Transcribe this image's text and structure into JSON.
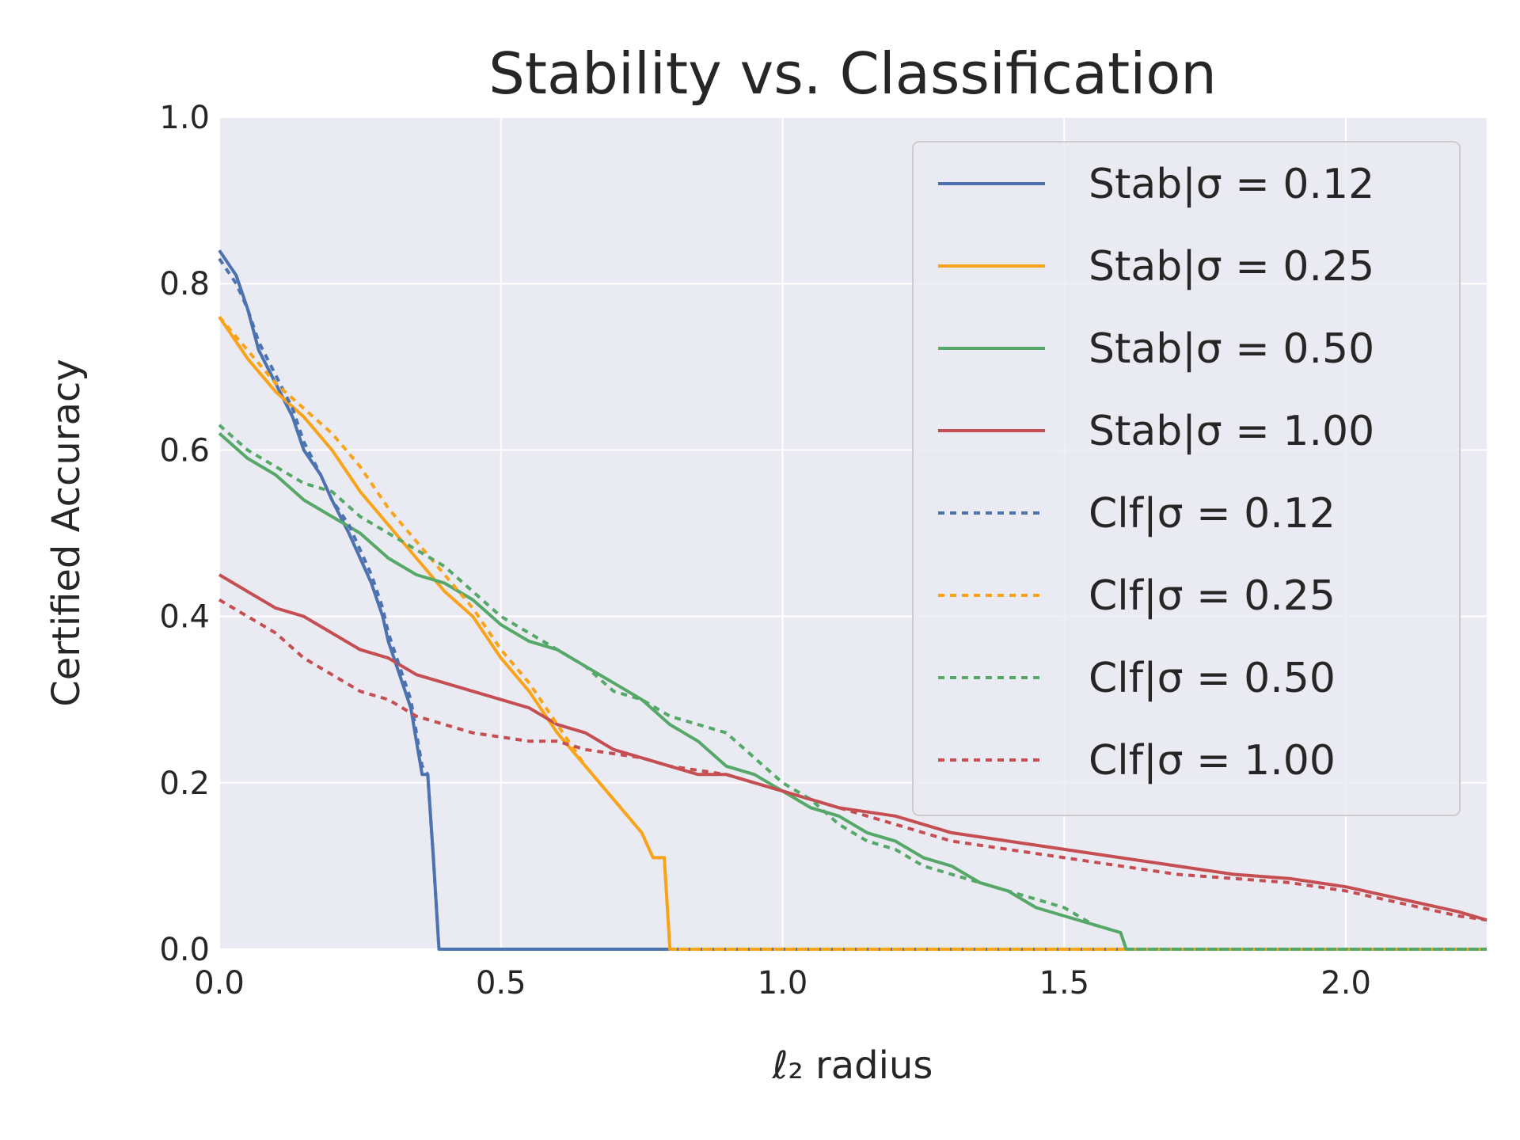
{
  "chart_data": {
    "type": "line",
    "title": "Stability vs. Classification",
    "xlabel": "ℓ₂ radius",
    "ylabel": "Certified Accuracy",
    "xlim": [
      0,
      2.25
    ],
    "ylim": [
      0,
      1.0
    ],
    "x_ticks": [
      "0.0",
      "0.5",
      "1.0",
      "1.5",
      "2.0"
    ],
    "y_ticks": [
      "0.0",
      "0.2",
      "0.4",
      "0.6",
      "0.8",
      "1.0"
    ],
    "grid": true,
    "legend_position": "top-right",
    "series": [
      {
        "name": "Stab|σ = 0.12",
        "color": "#4c72b0",
        "style": "solid",
        "x": [
          0,
          0.03,
          0.05,
          0.07,
          0.1,
          0.13,
          0.15,
          0.18,
          0.2,
          0.23,
          0.25,
          0.27,
          0.29,
          0.3,
          0.32,
          0.34,
          0.35,
          0.36,
          0.37,
          0.38,
          0.39,
          2.25
        ],
        "y": [
          0.84,
          0.81,
          0.77,
          0.72,
          0.68,
          0.64,
          0.6,
          0.57,
          0.54,
          0.5,
          0.47,
          0.44,
          0.4,
          0.37,
          0.33,
          0.29,
          0.25,
          0.21,
          0.21,
          0.11,
          0.0,
          0.0
        ]
      },
      {
        "name": "Stab|σ = 0.25",
        "color": "#f9a31b",
        "style": "solid",
        "x": [
          0,
          0.05,
          0.1,
          0.15,
          0.2,
          0.25,
          0.3,
          0.35,
          0.4,
          0.45,
          0.5,
          0.55,
          0.6,
          0.65,
          0.7,
          0.75,
          0.77,
          0.79,
          0.8,
          2.25
        ],
        "y": [
          0.76,
          0.71,
          0.67,
          0.64,
          0.6,
          0.55,
          0.51,
          0.47,
          0.43,
          0.4,
          0.35,
          0.31,
          0.26,
          0.22,
          0.18,
          0.14,
          0.11,
          0.11,
          0.0,
          0.0
        ]
      },
      {
        "name": "Stab|σ = 0.50",
        "color": "#55a868",
        "style": "solid",
        "x": [
          0,
          0.05,
          0.1,
          0.15,
          0.2,
          0.25,
          0.3,
          0.35,
          0.4,
          0.45,
          0.5,
          0.55,
          0.6,
          0.65,
          0.7,
          0.75,
          0.8,
          0.85,
          0.9,
          0.95,
          1.0,
          1.05,
          1.1,
          1.15,
          1.2,
          1.25,
          1.3,
          1.35,
          1.4,
          1.45,
          1.5,
          1.55,
          1.6,
          1.61,
          2.25
        ],
        "y": [
          0.62,
          0.59,
          0.57,
          0.54,
          0.52,
          0.5,
          0.47,
          0.45,
          0.44,
          0.42,
          0.39,
          0.37,
          0.36,
          0.34,
          0.32,
          0.3,
          0.27,
          0.25,
          0.22,
          0.21,
          0.19,
          0.17,
          0.16,
          0.14,
          0.13,
          0.11,
          0.1,
          0.08,
          0.07,
          0.05,
          0.04,
          0.03,
          0.02,
          0.0,
          0.0
        ]
      },
      {
        "name": "Stab|σ = 1.00",
        "color": "#c44e52",
        "style": "solid",
        "x": [
          0,
          0.05,
          0.1,
          0.15,
          0.2,
          0.25,
          0.3,
          0.35,
          0.4,
          0.45,
          0.5,
          0.55,
          0.6,
          0.65,
          0.7,
          0.75,
          0.8,
          0.85,
          0.9,
          0.95,
          1.0,
          1.1,
          1.2,
          1.3,
          1.4,
          1.5,
          1.6,
          1.7,
          1.8,
          1.9,
          2.0,
          2.1,
          2.2,
          2.25
        ],
        "y": [
          0.45,
          0.43,
          0.41,
          0.4,
          0.38,
          0.36,
          0.35,
          0.33,
          0.32,
          0.31,
          0.3,
          0.29,
          0.27,
          0.26,
          0.24,
          0.23,
          0.22,
          0.21,
          0.21,
          0.2,
          0.19,
          0.17,
          0.16,
          0.14,
          0.13,
          0.12,
          0.11,
          0.1,
          0.09,
          0.085,
          0.075,
          0.06,
          0.045,
          0.035
        ]
      },
      {
        "name": "Clf|σ = 0.12",
        "color": "#4c72b0",
        "style": "dotted",
        "x": [
          0,
          0.03,
          0.05,
          0.07,
          0.1,
          0.13,
          0.15,
          0.18,
          0.2,
          0.23,
          0.25,
          0.27,
          0.29,
          0.3,
          0.32,
          0.34,
          0.35,
          0.36,
          0.37,
          0.38,
          0.39,
          2.25
        ],
        "y": [
          0.83,
          0.8,
          0.77,
          0.73,
          0.69,
          0.65,
          0.61,
          0.57,
          0.54,
          0.51,
          0.48,
          0.45,
          0.41,
          0.38,
          0.34,
          0.3,
          0.26,
          0.22,
          0.21,
          0.11,
          0.0,
          0.0
        ]
      },
      {
        "name": "Clf|σ = 0.25",
        "color": "#f9a31b",
        "style": "dotted",
        "x": [
          0,
          0.05,
          0.1,
          0.15,
          0.2,
          0.25,
          0.3,
          0.35,
          0.4,
          0.45,
          0.5,
          0.55,
          0.6,
          0.65,
          0.7,
          0.75,
          0.77,
          0.79,
          0.8,
          2.25
        ],
        "y": [
          0.76,
          0.72,
          0.68,
          0.65,
          0.62,
          0.58,
          0.53,
          0.49,
          0.45,
          0.41,
          0.36,
          0.32,
          0.27,
          0.22,
          0.18,
          0.14,
          0.11,
          0.11,
          0.0,
          0.0
        ]
      },
      {
        "name": "Clf|σ = 0.50",
        "color": "#55a868",
        "style": "dotted",
        "x": [
          0,
          0.05,
          0.1,
          0.15,
          0.2,
          0.25,
          0.3,
          0.35,
          0.4,
          0.45,
          0.5,
          0.55,
          0.6,
          0.65,
          0.7,
          0.75,
          0.8,
          0.85,
          0.9,
          0.95,
          1.0,
          1.05,
          1.1,
          1.15,
          1.2,
          1.25,
          1.3,
          1.35,
          1.4,
          1.45,
          1.5,
          1.55,
          1.6,
          1.61,
          2.25
        ],
        "y": [
          0.63,
          0.6,
          0.58,
          0.56,
          0.55,
          0.52,
          0.5,
          0.48,
          0.46,
          0.43,
          0.4,
          0.38,
          0.36,
          0.34,
          0.31,
          0.3,
          0.28,
          0.27,
          0.26,
          0.23,
          0.2,
          0.18,
          0.15,
          0.13,
          0.12,
          0.1,
          0.09,
          0.08,
          0.07,
          0.06,
          0.05,
          0.03,
          0.02,
          0.0,
          0.0
        ]
      },
      {
        "name": "Clf|σ = 1.00",
        "color": "#c44e52",
        "style": "dotted",
        "x": [
          0,
          0.05,
          0.1,
          0.15,
          0.2,
          0.25,
          0.3,
          0.35,
          0.4,
          0.45,
          0.5,
          0.55,
          0.6,
          0.65,
          0.7,
          0.75,
          0.8,
          0.85,
          0.9,
          0.95,
          1.0,
          1.1,
          1.2,
          1.3,
          1.4,
          1.5,
          1.6,
          1.7,
          1.8,
          1.9,
          2.0,
          2.1,
          2.2,
          2.25
        ],
        "y": [
          0.42,
          0.4,
          0.38,
          0.35,
          0.33,
          0.31,
          0.3,
          0.28,
          0.27,
          0.26,
          0.255,
          0.25,
          0.25,
          0.24,
          0.235,
          0.23,
          0.22,
          0.215,
          0.21,
          0.2,
          0.19,
          0.17,
          0.15,
          0.13,
          0.12,
          0.11,
          0.1,
          0.09,
          0.085,
          0.08,
          0.07,
          0.055,
          0.04,
          0.035
        ]
      }
    ]
  }
}
